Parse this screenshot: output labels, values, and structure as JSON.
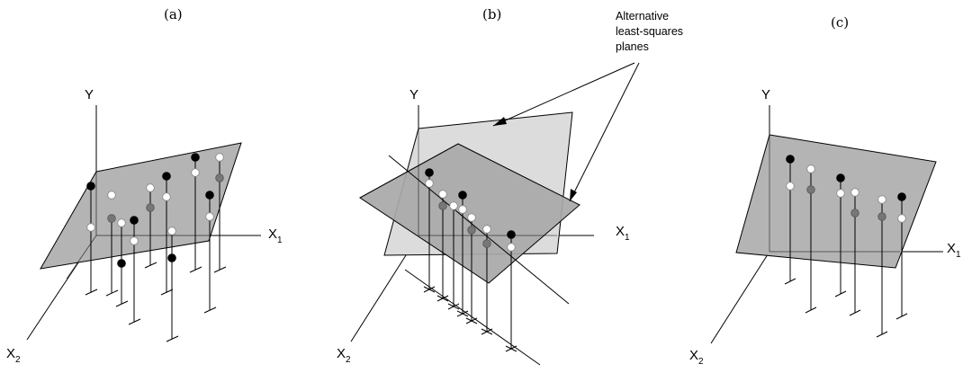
{
  "panels": [
    {
      "label": "(a)",
      "y_axis": "Y",
      "x1_axis": "X",
      "x1_sub": "1",
      "x2_axis": "X",
      "x2_sub": "2"
    },
    {
      "label": "(b)",
      "y_axis": "Y",
      "x1_axis": "X",
      "x1_sub": "1",
      "x2_axis": "X",
      "x2_sub": "2"
    },
    {
      "label": "(c)",
      "y_axis": "Y",
      "x1_axis": "X",
      "x1_sub": "1",
      "x2_axis": "X",
      "x2_sub": "2"
    }
  ],
  "annotation": {
    "line1": "Alternative",
    "line2": "least-squares",
    "line3": "planes"
  },
  "colors": {
    "plane": "#b4b4b4",
    "plane_light": "#dcdcdc",
    "plane_dark": "#a8a8a8",
    "point_above": "#000000",
    "point_on_plane": "#ffffff",
    "point_below": "#777777"
  }
}
